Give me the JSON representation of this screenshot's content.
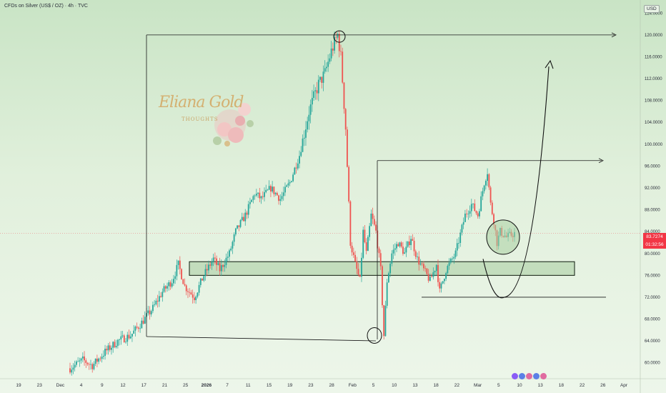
{
  "header": {
    "title": "CFDs on Silver (US$ / OZ) · 4h · TVC",
    "currency": "USD"
  },
  "price_tag": {
    "last": "83.7274",
    "countdown": "01:32:56"
  },
  "logo": {
    "name": "Eliana Gold",
    "subtitle": "THOUGHTS"
  },
  "colors": {
    "up": "#26a69a",
    "down": "#ef5350",
    "accent": "#f23645",
    "zone_fill": "#c3ddbd"
  },
  "chart_data": {
    "type": "candlestick",
    "y_axis": {
      "ticks": [
        "124.0000",
        "120.0000",
        "116.0000",
        "112.0000",
        "108.0000",
        "104.0000",
        "100.0000",
        "96.0000",
        "92.0000",
        "88.0000",
        "84.0000",
        "80.0000",
        "76.0000",
        "72.0000",
        "68.0000",
        "64.0000",
        "60.0000"
      ],
      "range": [
        58,
        126
      ]
    },
    "x_axis": {
      "labels": [
        {
          "t": "19",
          "bold": false
        },
        {
          "t": "23",
          "bold": false
        },
        {
          "t": "Dec",
          "bold": false
        },
        {
          "t": "4",
          "bold": false
        },
        {
          "t": "9",
          "bold": false
        },
        {
          "t": "12",
          "bold": false
        },
        {
          "t": "17",
          "bold": false
        },
        {
          "t": "21",
          "bold": false
        },
        {
          "t": "25",
          "bold": false
        },
        {
          "t": "2026",
          "bold": true
        },
        {
          "t": "7",
          "bold": false
        },
        {
          "t": "11",
          "bold": false
        },
        {
          "t": "15",
          "bold": false
        },
        {
          "t": "19",
          "bold": false
        },
        {
          "t": "23",
          "bold": false
        },
        {
          "t": "28",
          "bold": false
        },
        {
          "t": "Feb",
          "bold": false
        },
        {
          "t": "5",
          "bold": false
        },
        {
          "t": "10",
          "bold": false
        },
        {
          "t": "13",
          "bold": false
        },
        {
          "t": "18",
          "bold": false
        },
        {
          "t": "22",
          "bold": false
        },
        {
          "t": "Mar",
          "bold": false
        },
        {
          "t": "5",
          "bold": false
        },
        {
          "t": "10",
          "bold": false
        },
        {
          "t": "13",
          "bold": false
        },
        {
          "t": "18",
          "bold": false
        },
        {
          "t": "22",
          "bold": false
        },
        {
          "t": "26",
          "bold": false
        },
        {
          "t": "Apr",
          "bold": false
        }
      ]
    },
    "path_anchors": [
      [
        0,
        59
      ],
      [
        8,
        60.5
      ],
      [
        14,
        59.5
      ],
      [
        22,
        62
      ],
      [
        30,
        64
      ],
      [
        38,
        65
      ],
      [
        44,
        67
      ],
      [
        52,
        70
      ],
      [
        58,
        73
      ],
      [
        64,
        75
      ],
      [
        68,
        78
      ],
      [
        72,
        74
      ],
      [
        78,
        72
      ],
      [
        84,
        76
      ],
      [
        90,
        79
      ],
      [
        94,
        77
      ],
      [
        100,
        80
      ],
      [
        104,
        84
      ],
      [
        110,
        87
      ],
      [
        116,
        91
      ],
      [
        120,
        90
      ],
      [
        126,
        92
      ],
      [
        132,
        90
      ],
      [
        138,
        93
      ],
      [
        144,
        98
      ],
      [
        150,
        106
      ],
      [
        156,
        111
      ],
      [
        160,
        113
      ],
      [
        164,
        117
      ],
      [
        168,
        120
      ],
      [
        170,
        116
      ],
      [
        173,
        103
      ],
      [
        176,
        82
      ],
      [
        179,
        78
      ],
      [
        182,
        75
      ],
      [
        184,
        84
      ],
      [
        186,
        80
      ],
      [
        189,
        87
      ],
      [
        192,
        84
      ],
      [
        195,
        77
      ],
      [
        197,
        65
      ],
      [
        199,
        75
      ],
      [
        202,
        80
      ],
      [
        206,
        82
      ],
      [
        210,
        80
      ],
      [
        214,
        83
      ],
      [
        218,
        79
      ],
      [
        222,
        77
      ],
      [
        226,
        75
      ],
      [
        230,
        78
      ],
      [
        232,
        73
      ],
      [
        236,
        77
      ],
      [
        242,
        80
      ],
      [
        248,
        87
      ],
      [
        252,
        89
      ],
      [
        256,
        87
      ],
      [
        260,
        93
      ],
      [
        262,
        95
      ],
      [
        264,
        89
      ],
      [
        266,
        86
      ],
      [
        268,
        82
      ],
      [
        270,
        84
      ],
      [
        274,
        83
      ],
      [
        279,
        83.7
      ]
    ],
    "candles_total": 280,
    "annotations": {
      "big_box_top": 120,
      "big_box_bottom": 64.8,
      "mid_box_top": 97,
      "lower_line": 72,
      "zone_low": 76,
      "zone_high": 78.5,
      "projection_target": 115
    }
  }
}
